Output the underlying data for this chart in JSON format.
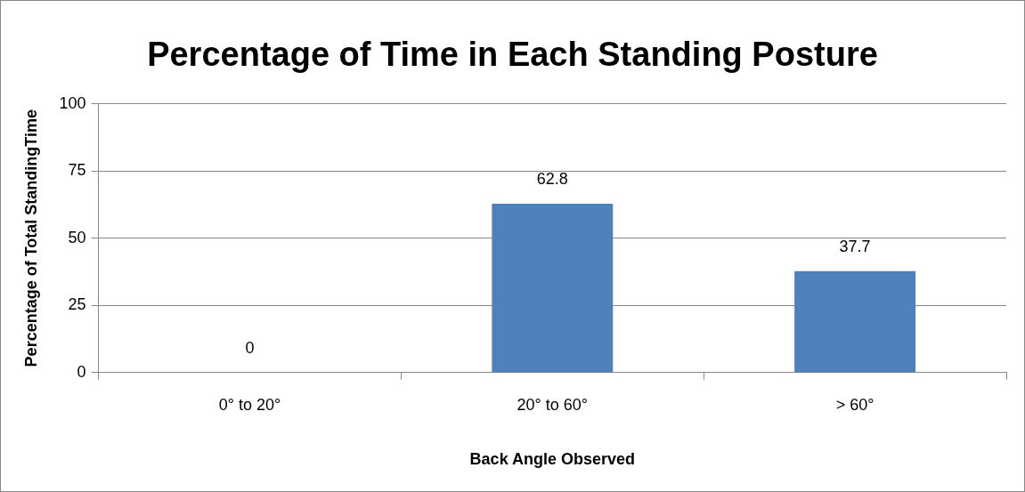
{
  "chart_data": {
    "type": "bar",
    "title": "Percentage of Time in Each Standing Posture",
    "xlabel": "Back Angle Observed",
    "ylabel": "Percentage of Total StandingTime",
    "categories": [
      "0° to 20°",
      "20° to 60°",
      "> 60°"
    ],
    "values": [
      0,
      62.8,
      37.7
    ],
    "color": "#4f81bd",
    "ylim": [
      0,
      100
    ],
    "yticks": [
      0,
      25,
      50,
      75,
      100
    ],
    "grid": "y",
    "data_labels": true
  }
}
